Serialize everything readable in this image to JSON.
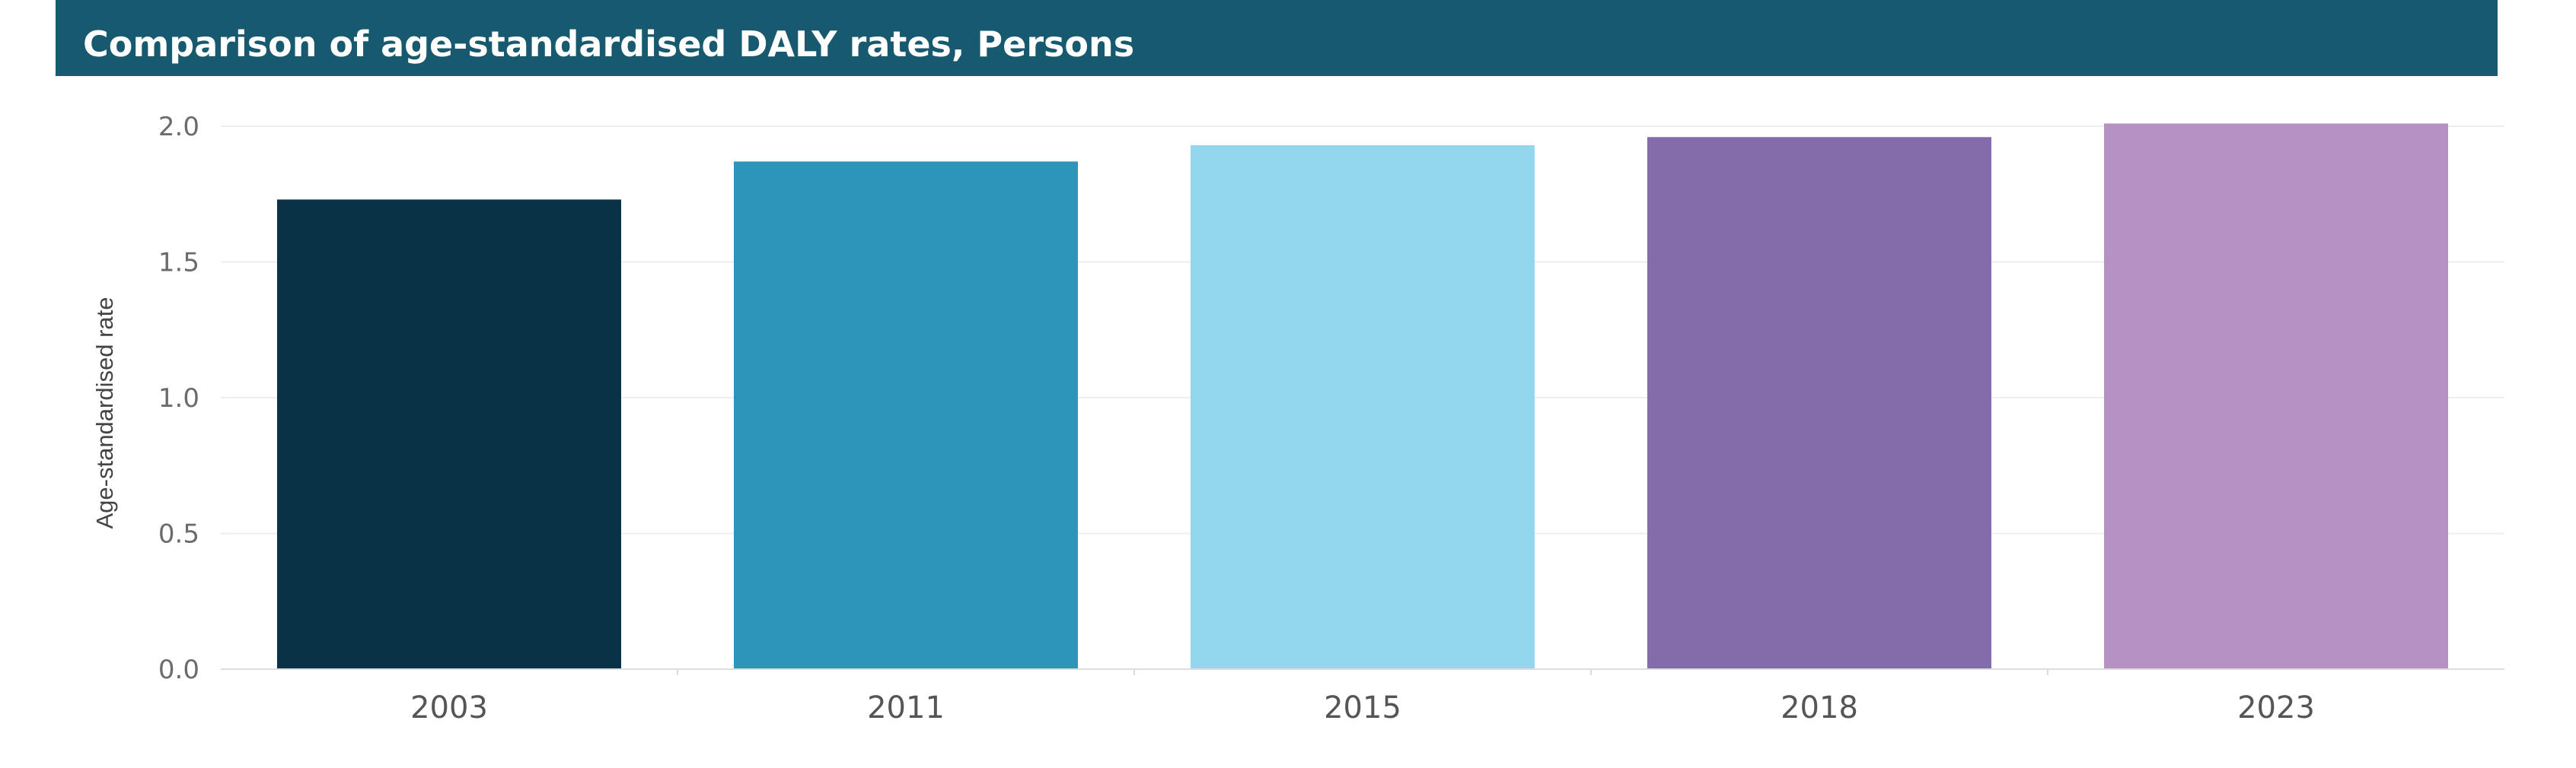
{
  "header": {
    "title": "Comparison of age-standardised DALY rates, Persons"
  },
  "chart_data": {
    "type": "bar",
    "title": "Comparison of age-standardised DALY rates, Persons",
    "xlabel": "",
    "ylabel": "Age-standardised rate",
    "categories": [
      "2003",
      "2011",
      "2015",
      "2018",
      "2023"
    ],
    "values": [
      1.73,
      1.87,
      1.93,
      1.96,
      2.01
    ],
    "colors": [
      "#0a3247",
      "#2d95b9",
      "#92d7ee",
      "#846cab",
      "#b591c4"
    ],
    "ylim": [
      0,
      2.0
    ],
    "yticks": [
      0.0,
      0.5,
      1.0,
      1.5,
      2.0
    ],
    "ytick_labels": [
      "0.0",
      "0.5",
      "1.0",
      "1.5",
      "2.0"
    ],
    "grid": true,
    "legend": "none"
  }
}
